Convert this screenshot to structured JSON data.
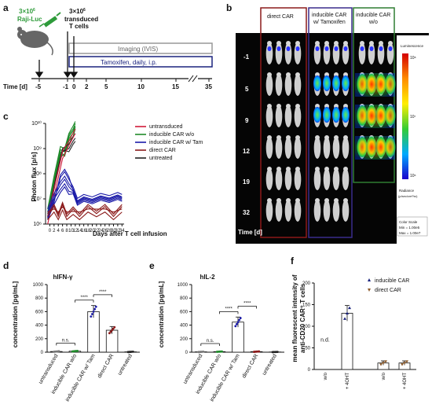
{
  "panel_labels": {
    "a": "a",
    "b": "b",
    "c": "c",
    "d": "d",
    "e": "e",
    "f": "f"
  },
  "panel_a": {
    "raji_count": "3×10",
    "raji_exp": "6",
    "raji_label": "Raji-Luc",
    "tcell_count": "3×10",
    "tcell_exp": "6",
    "tcell_label1": "transduced",
    "tcell_label2": "T cells",
    "imaging_label": "Imaging (IVIS)",
    "tamoxifen_label": "Tamoxifen, daily, i.p.",
    "time_label": "Time [d]",
    "ticks": [
      "-5",
      "-1",
      "0",
      "2",
      "5",
      "10",
      "15",
      "35"
    ],
    "colors": {
      "raji": "#2e9b3a",
      "syringe": "#2e9b3a",
      "imaging_box": "#999999",
      "tamoxifen_box": "#1a237e"
    }
  },
  "panel_b": {
    "col_headers": [
      [
        "direct CAR"
      ],
      [
        "inducible CAR",
        "w/ Tamoxifen"
      ],
      [
        "inducible CAR",
        "w/o"
      ]
    ],
    "row_labels": [
      "-1",
      "5",
      "9",
      "12",
      "19",
      "32"
    ],
    "time_label": "Time [d]",
    "colorbar_title": "Luminescence",
    "colorbar_ticks": [
      "10⁸",
      "10⁷",
      "10⁶"
    ],
    "radiance_label1": "Radiance",
    "radiance_label2": "(p/sec/cm²/sr)",
    "scale_lines": [
      "Color Scale",
      "Min = 1.00e5",
      "Max = 1.00e7"
    ],
    "colors": {
      "direct": "#8b1a1a",
      "tamoxifen": "#3a2c8c",
      "without": "#2e7d32"
    }
  },
  "panel_c": {
    "chart_data": {
      "type": "line",
      "ylabel": "Photon flux [p/s]",
      "xlabel": "Days after T cell infusion",
      "yscale": "log",
      "ylim": [
        1000000,
        10000000000
      ],
      "yticks": [
        "10¹⁰",
        "10⁹",
        "10⁸",
        "10⁷",
        "10⁶"
      ],
      "xlim": [
        -2,
        35
      ],
      "xticks": [
        "0",
        "2",
        "4",
        "6",
        "8",
        "10",
        "12",
        "14",
        "16",
        "18",
        "20",
        "22",
        "24",
        "26",
        "28",
        "30",
        "32",
        "34"
      ],
      "series": [
        {
          "name": "untransduced",
          "color": "#d11a3a"
        },
        {
          "name": "inducible CAR w/o",
          "color": "#1f8a2a"
        },
        {
          "name": "inducible CAR w/ Tam",
          "color": "#1a1aa8"
        },
        {
          "name": "direct CAR",
          "color": "#8b1a1a"
        },
        {
          "name": "untreated",
          "color": "#222222"
        }
      ]
    }
  },
  "panel_d": {
    "chart_data": {
      "type": "bar",
      "title": "hIFN-γ",
      "ylabel": "concentration [pg/mL]",
      "categories": [
        "untransduced",
        "inducible CAR w/o",
        "inducible CAR w/ Tam",
        "direct CAR",
        "untreated"
      ],
      "values": [
        10,
        15,
        600,
        325,
        5
      ],
      "errors": [
        5,
        5,
        90,
        55,
        3
      ],
      "ylim": [
        0,
        1000
      ],
      "yticks": [
        "0",
        "200",
        "400",
        "600",
        "800",
        "1000"
      ],
      "annotations": [
        "n.s.",
        "****",
        "****"
      ]
    }
  },
  "panel_e": {
    "chart_data": {
      "type": "bar",
      "title": "hIL-2",
      "ylabel": "concentration [pg/mL]",
      "categories": [
        "untransduced",
        "inducible CAR w/o",
        "inducible CAR w/ Tam",
        "direct CAR",
        "untreated"
      ],
      "values": [
        5,
        8,
        445,
        8,
        3
      ],
      "errors": [
        3,
        3,
        75,
        4,
        2
      ],
      "ylim": [
        0,
        1000
      ],
      "yticks": [
        "0",
        "200",
        "400",
        "600",
        "800",
        "1000"
      ],
      "annotations": [
        "n.s.",
        "****",
        "****"
      ]
    }
  },
  "panel_f": {
    "chart_data": {
      "type": "bar",
      "ylabel1": "mean fluorescent intensity of",
      "ylabel2": "anti-CD20 CAR⁺ T cells",
      "categories": [
        "w/o",
        "+ 4OHT",
        "w/o",
        "+ 4OHT"
      ],
      "values": [
        null,
        130,
        15,
        15
      ],
      "errors": [
        null,
        18,
        5,
        5
      ],
      "ylim": [
        0,
        200
      ],
      "yticks": [
        "0",
        "50",
        "100",
        "150",
        "200"
      ],
      "nd_label": "n.d.",
      "series": [
        {
          "name": "inducible CAR",
          "color": "#1a237e"
        },
        {
          "name": "direct CAR",
          "color": "#8b5a2b"
        }
      ]
    }
  }
}
